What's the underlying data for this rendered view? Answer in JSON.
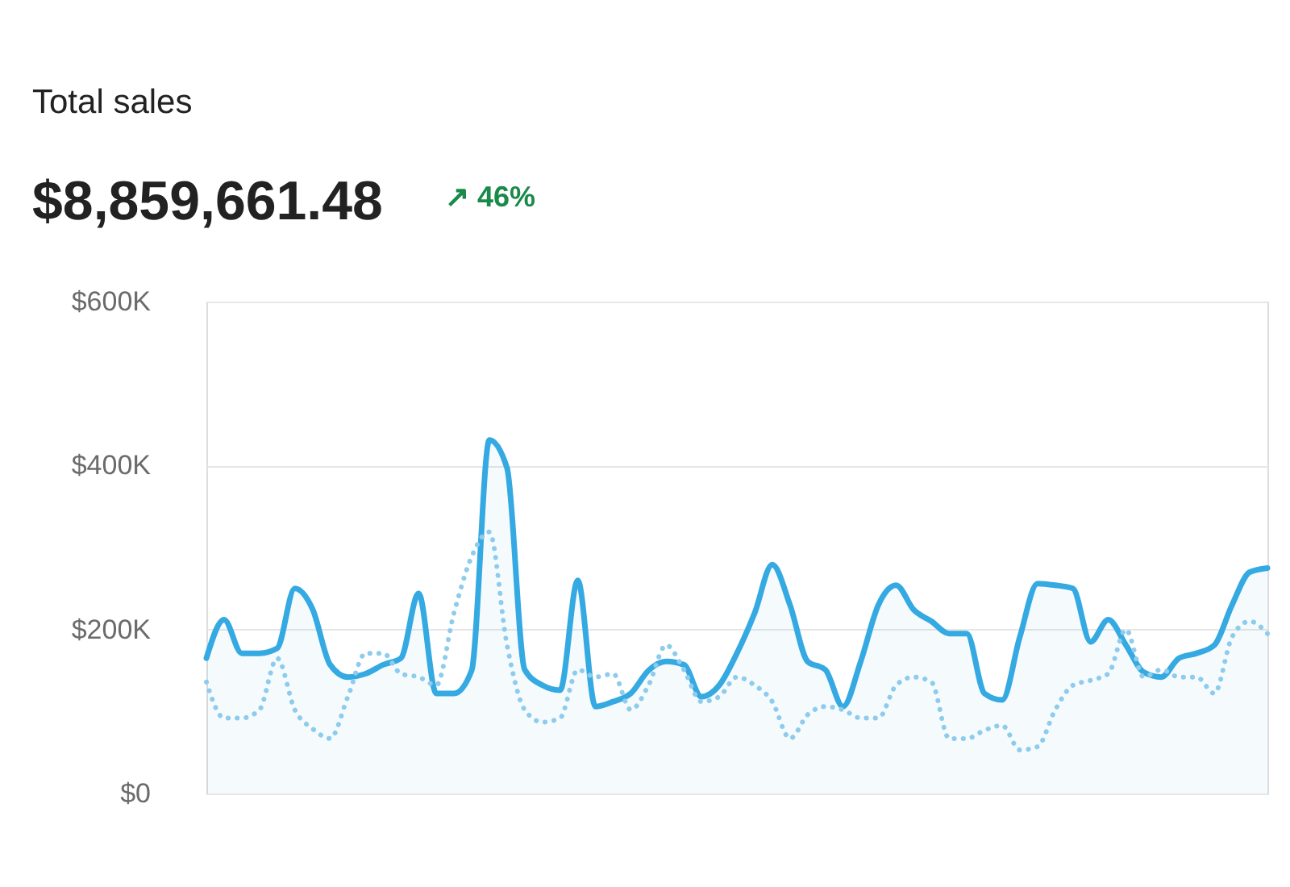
{
  "chart_data": {
    "type": "line",
    "title": "Total sales",
    "subtitle": "$8,859,661.48",
    "annotations": [
      "↗ 46%"
    ],
    "categories": [
      null,
      null,
      null,
      null,
      null,
      null,
      null,
      null,
      null,
      null,
      null,
      null,
      null,
      null,
      null,
      null,
      null,
      null,
      null,
      null,
      null,
      null,
      null,
      null,
      null,
      null,
      null,
      null,
      null,
      null,
      null,
      null,
      null,
      null,
      null,
      null,
      null,
      null,
      null,
      null,
      null,
      null,
      null,
      null,
      null,
      null,
      null,
      null,
      null,
      null,
      null,
      null,
      null,
      null,
      null,
      null,
      null,
      null,
      null,
      null,
      null
    ],
    "series": [
      {
        "type": "area",
        "color": "#35a9e1",
        "line_style": "solid",
        "values": [
          165000,
          212000,
          171000,
          171000,
          177000,
          250000,
          225000,
          157000,
          142000,
          146000,
          157000,
          165000,
          244000,
          122000,
          122000,
          150000,
          431000,
          397000,
          151000,
          132000,
          126000,
          260000,
          106000,
          112000,
          122000,
          150000,
          161000,
          157000,
          118000,
          132000,
          171000,
          220000,
          279000,
          230000,
          161000,
          151000,
          106000,
          161000,
          230000,
          254000,
          224000,
          210000,
          195000,
          195000,
          122000,
          114000,
          191000,
          256000,
          254000,
          250000,
          185000,
          212000,
          181000,
          148000,
          142000,
          165000,
          171000,
          181000,
          230000,
          270000,
          275000
        ]
      },
      {
        "type": "line",
        "color": "#8ecbec",
        "line_style": "dotted",
        "values": [
          136000,
          92000,
          92000,
          102000,
          165000,
          102000,
          79000,
          67000,
          118000,
          171000,
          171000,
          146000,
          142000,
          132000,
          220000,
          289000,
          319000,
          181000,
          102000,
          87000,
          92000,
          151000,
          142000,
          146000,
          102000,
          132000,
          181000,
          151000,
          112000,
          118000,
          142000,
          132000,
          112000,
          67000,
          96000,
          106000,
          102000,
          92000,
          92000,
          132000,
          142000,
          136000,
          67000,
          67000,
          77000,
          83000,
          53000,
          57000,
          102000,
          132000,
          138000,
          146000,
          200000,
          142000,
          151000,
          142000,
          142000,
          122000,
          191000,
          210000,
          195000
        ]
      }
    ],
    "ylim": [
      0,
      600000
    ],
    "yticks": [
      {
        "value": 0,
        "label": "$0"
      },
      {
        "value": 200000,
        "label": "$200K"
      },
      {
        "value": 400000,
        "label": "$400K"
      },
      {
        "value": 600000,
        "label": "$600K"
      }
    ],
    "grid": "y",
    "tick_labels": "y"
  }
}
